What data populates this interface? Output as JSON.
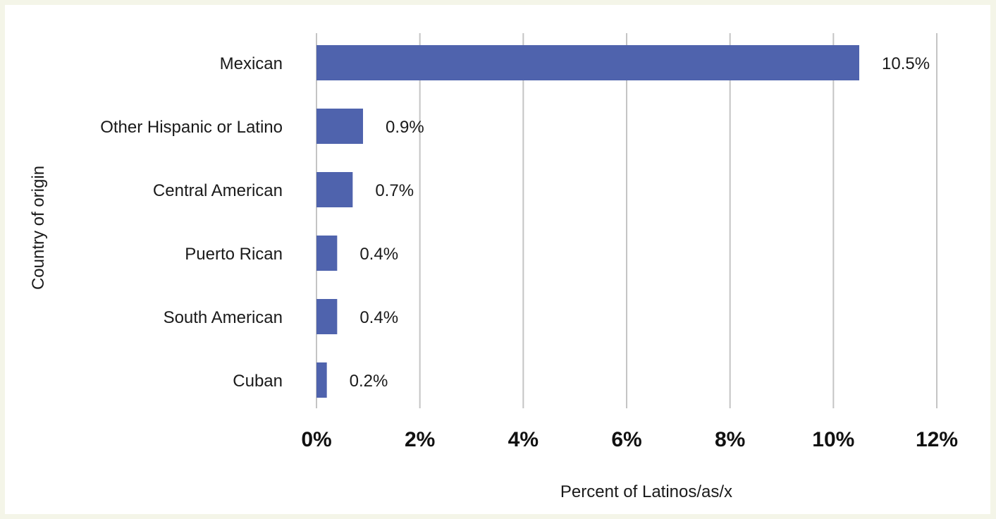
{
  "chart_data": {
    "type": "bar",
    "orientation": "horizontal",
    "categories": [
      "Mexican",
      "Other Hispanic or Latino",
      "Central American",
      "Puerto Rican",
      "South American",
      "Cuban"
    ],
    "values": [
      10.5,
      0.9,
      0.7,
      0.4,
      0.4,
      0.2
    ],
    "value_labels": [
      "10.5%",
      "0.9%",
      "0.7%",
      "0.4%",
      "0.4%",
      "0.2%"
    ],
    "title": "",
    "xlabel": "Percent of Latinos/as/x",
    "ylabel": "Country of origin",
    "xlim": [
      0,
      12
    ],
    "x_ticks": [
      0,
      2,
      4,
      6,
      8,
      10,
      12
    ],
    "x_tick_labels": [
      "0%",
      "2%",
      "4%",
      "6%",
      "8%",
      "10%",
      "12%"
    ],
    "grid": "vertical",
    "legend": "none",
    "colors": {
      "bar": "#4f63ad",
      "grid": "#c4c4c4",
      "background": "#ffffff",
      "page": "#f4f5e8"
    }
  }
}
